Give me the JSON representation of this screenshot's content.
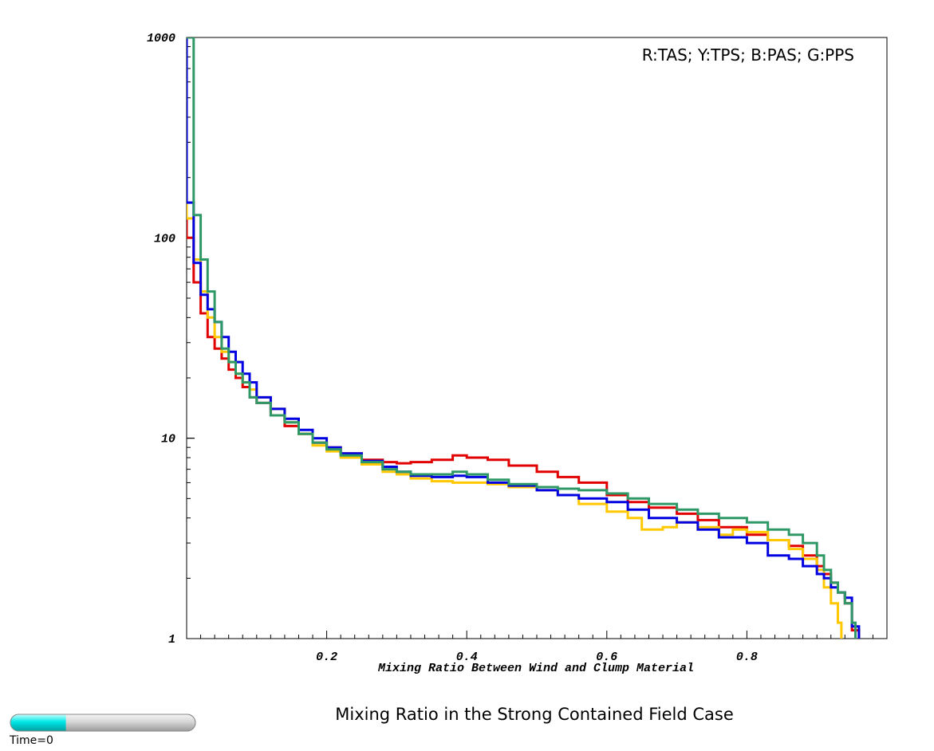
{
  "chart_data": {
    "type": "line",
    "title": "Mixing Ratio in the Strong Contained Field Case",
    "xlabel": "Mixing Ratio Between Wind and Clump Material",
    "ylabel": "",
    "xlim": [
      0,
      1.0
    ],
    "ylim": [
      1,
      1000
    ],
    "yscale": "log",
    "grid": false,
    "x_ticks": [
      "0.2",
      "0.4",
      "0.6",
      "0.8"
    ],
    "x_tick_values": [
      0.2,
      0.4,
      0.6,
      0.8
    ],
    "y_ticks": [
      "1",
      "10",
      "100",
      "1000"
    ],
    "y_tick_values": [
      1,
      10,
      100,
      1000
    ],
    "legend_text": "R:TAS; Y:TPS; B:PAS; G:PPS",
    "legend_placement": "top-right",
    "series": [
      {
        "color": "#e00000",
        "x": [
          0.0,
          0.01,
          0.02,
          0.03,
          0.04,
          0.05,
          0.06,
          0.07,
          0.08,
          0.09,
          0.1,
          0.12,
          0.14,
          0.16,
          0.18,
          0.2,
          0.22,
          0.25,
          0.28,
          0.3,
          0.32,
          0.35,
          0.38,
          0.4,
          0.43,
          0.46,
          0.5,
          0.53,
          0.56,
          0.6,
          0.63,
          0.66,
          0.7,
          0.73,
          0.76,
          0.8,
          0.83,
          0.86,
          0.88,
          0.9,
          0.91,
          0.92,
          0.93,
          0.94,
          0.95,
          0.96
        ],
        "y": [
          100,
          60,
          42,
          32,
          28,
          25,
          22,
          20,
          18,
          16,
          15,
          13,
          11.5,
          10.5,
          9.5,
          9,
          8.4,
          7.8,
          7.6,
          7.5,
          7.6,
          7.8,
          8.2,
          8.0,
          7.8,
          7.3,
          6.8,
          6.4,
          6.0,
          5.2,
          4.8,
          4.5,
          4.2,
          3.9,
          3.6,
          3.3,
          3.1,
          2.9,
          2.6,
          2.3,
          2.1,
          1.9,
          1.7,
          1.5,
          1.1,
          1.0
        ]
      },
      {
        "color": "#ffc800",
        "x": [
          0.0,
          0.01,
          0.02,
          0.03,
          0.04,
          0.05,
          0.06,
          0.07,
          0.08,
          0.09,
          0.1,
          0.12,
          0.14,
          0.16,
          0.18,
          0.2,
          0.22,
          0.25,
          0.28,
          0.3,
          0.32,
          0.35,
          0.38,
          0.4,
          0.43,
          0.46,
          0.5,
          0.53,
          0.56,
          0.6,
          0.63,
          0.65,
          0.68,
          0.7,
          0.73,
          0.76,
          0.78,
          0.8,
          0.83,
          0.86,
          0.88,
          0.9,
          0.91,
          0.92,
          0.93,
          0.935
        ],
        "y": [
          125,
          78,
          54,
          40,
          32,
          27,
          24,
          21,
          19,
          17.5,
          16,
          14,
          12,
          10.5,
          9.2,
          8.6,
          8.0,
          7.4,
          6.8,
          6.6,
          6.3,
          6.1,
          6.0,
          6.0,
          5.9,
          5.7,
          5.5,
          5.2,
          4.7,
          4.3,
          4.0,
          3.5,
          3.6,
          3.8,
          3.6,
          3.3,
          3.5,
          3.4,
          3.1,
          2.8,
          2.5,
          2.2,
          1.8,
          1.5,
          1.2,
          1.0
        ]
      },
      {
        "color": "#0000e0",
        "x": [
          0.0,
          0.01,
          0.02,
          0.03,
          0.04,
          0.05,
          0.06,
          0.07,
          0.08,
          0.09,
          0.1,
          0.12,
          0.14,
          0.16,
          0.18,
          0.2,
          0.22,
          0.25,
          0.28,
          0.3,
          0.32,
          0.35,
          0.38,
          0.4,
          0.43,
          0.46,
          0.5,
          0.53,
          0.56,
          0.6,
          0.63,
          0.66,
          0.7,
          0.73,
          0.76,
          0.8,
          0.83,
          0.86,
          0.88,
          0.9,
          0.91,
          0.92,
          0.93,
          0.94,
          0.95,
          0.96
        ],
        "y": [
          150,
          75,
          52,
          44,
          38,
          32,
          27,
          24,
          21,
          19,
          16,
          14,
          12.5,
          11,
          10,
          9,
          8.4,
          7.7,
          7.2,
          6.8,
          6.5,
          6.4,
          6.5,
          6.4,
          6.0,
          5.8,
          5.5,
          5.2,
          5.0,
          4.8,
          4.4,
          4.0,
          3.8,
          3.5,
          3.2,
          3.0,
          2.6,
          2.5,
          2.3,
          2.1,
          2.0,
          1.8,
          1.7,
          1.6,
          1.15,
          1.0
        ]
      },
      {
        "color": "#2e9966",
        "x": [
          0.0,
          0.01,
          0.02,
          0.03,
          0.04,
          0.05,
          0.06,
          0.07,
          0.08,
          0.09,
          0.1,
          0.12,
          0.14,
          0.16,
          0.18,
          0.2,
          0.22,
          0.25,
          0.28,
          0.3,
          0.32,
          0.35,
          0.38,
          0.4,
          0.43,
          0.46,
          0.5,
          0.53,
          0.56,
          0.6,
          0.63,
          0.66,
          0.7,
          0.73,
          0.76,
          0.8,
          0.83,
          0.86,
          0.88,
          0.9,
          0.91,
          0.92,
          0.93,
          0.94,
          0.95,
          0.955
        ],
        "y": [
          1000,
          130,
          78,
          54,
          38,
          28,
          24,
          21,
          19,
          16,
          15,
          13,
          12,
          10.5,
          9.5,
          8.8,
          8.2,
          7.6,
          7.0,
          6.8,
          6.6,
          6.6,
          6.8,
          6.6,
          6.2,
          5.9,
          5.7,
          5.6,
          5.5,
          5.3,
          5.0,
          4.7,
          4.4,
          4.2,
          4.0,
          3.8,
          3.5,
          3.3,
          3.0,
          2.6,
          2.2,
          1.9,
          1.7,
          1.5,
          1.2,
          1.0
        ]
      }
    ]
  },
  "time_slider": {
    "label": "Time=0",
    "fill_fraction": 0.3,
    "fill_color": "#00e6e6"
  }
}
